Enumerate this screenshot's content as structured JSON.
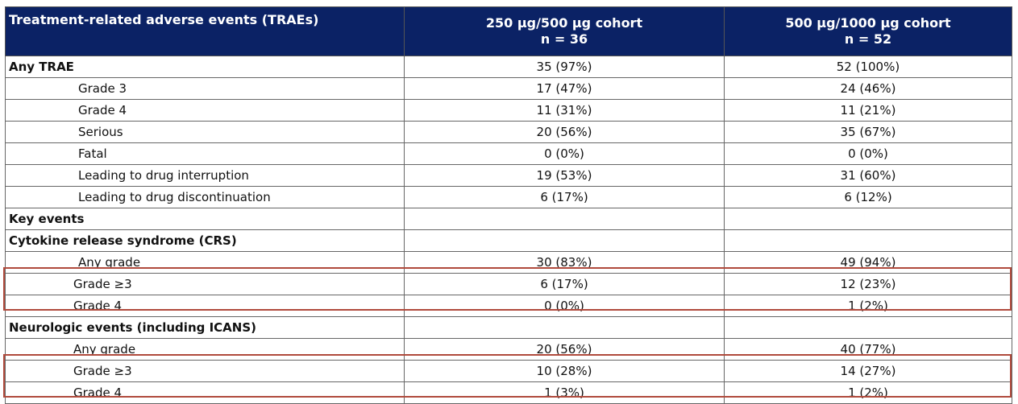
{
  "table": {
    "header": {
      "label": "Treatment-related adverse events (TRAEs)",
      "cohorts": [
        {
          "name": "250 µg/500 µg cohort",
          "n": "n = 36"
        },
        {
          "name": "500 µg/1000 µg cohort",
          "n": "n = 52"
        }
      ]
    },
    "rows": [
      {
        "label": "Any TRAE",
        "values": [
          "35 (97%)",
          "52 (100%)"
        ]
      },
      {
        "label": "Grade 3",
        "values": [
          "17 (47%)",
          "24 (46%)"
        ]
      },
      {
        "label": "Grade 4",
        "values": [
          "11 (31%)",
          "11 (21%)"
        ]
      },
      {
        "label": "Serious",
        "values": [
          "20 (56%)",
          "35 (67%)"
        ]
      },
      {
        "label": "Fatal",
        "values": [
          "0 (0%)",
          "0 (0%)"
        ]
      },
      {
        "label": "Leading to drug interruption",
        "values": [
          "19 (53%)",
          "31 (60%)"
        ]
      },
      {
        "label": "Leading to drug discontinuation",
        "values": [
          "6 (17%)",
          "6 (12%)"
        ]
      },
      {
        "label": "Key events"
      },
      {
        "label": "Cytokine release syndrome (CRS)"
      },
      {
        "label": "Any grade",
        "values": [
          "30 (83%)",
          "49 (94%)"
        ]
      },
      {
        "label": "Grade ≥3",
        "values": [
          "6 (17%)",
          "12 (23%)"
        ]
      },
      {
        "label": "Grade 4",
        "values": [
          "0 (0%)",
          "1 (2%)"
        ]
      },
      {
        "label": "Neurologic events (including ICANS)"
      },
      {
        "label": "Any grade",
        "values": [
          "20 (56%)",
          "40 (77%)"
        ]
      },
      {
        "label": "Grade ≥3",
        "values": [
          "10 (28%)",
          "14 (27%)"
        ]
      },
      {
        "label": "Grade 4",
        "values": [
          "1 (3%)",
          "1 (2%)"
        ]
      }
    ]
  }
}
